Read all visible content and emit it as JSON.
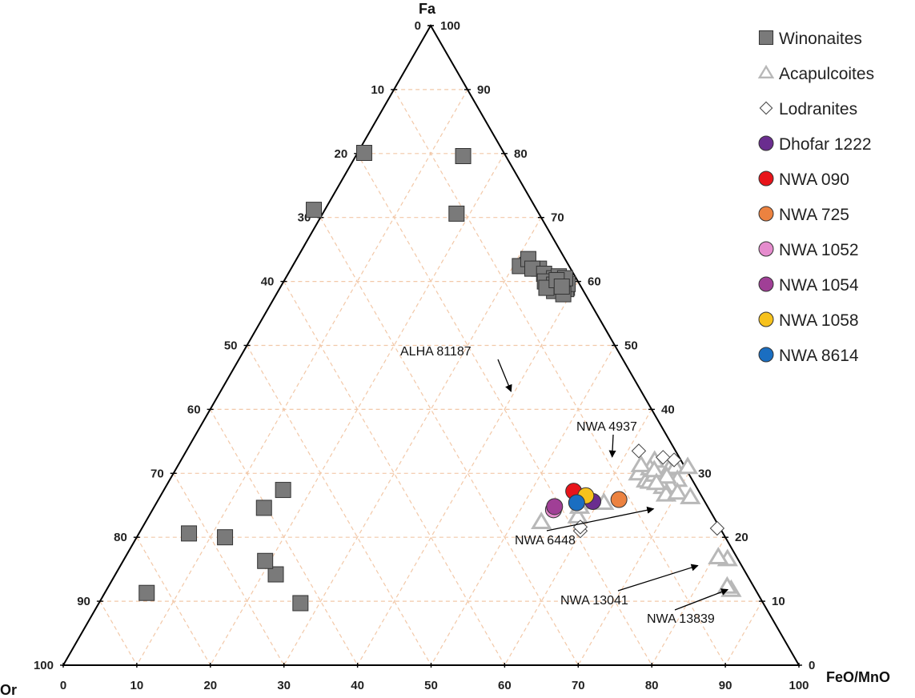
{
  "chart_data": {
    "type": "ternary",
    "apex_labels": {
      "top": "Fa",
      "left": "Or",
      "right": "FeO/MnO"
    },
    "axes": {
      "bottom": {
        "name": "FeO/MnO",
        "ticks": [
          "0",
          "10",
          "20",
          "30",
          "40",
          "50",
          "60",
          "70",
          "80",
          "90",
          "100"
        ]
      },
      "left": {
        "name": "Or",
        "ticks": [
          "0",
          "10",
          "20",
          "30",
          "40",
          "50",
          "60",
          "70",
          "80",
          "90",
          "100"
        ]
      },
      "right": {
        "name": "Fa",
        "ticks": [
          "0",
          "10",
          "20",
          "30",
          "40",
          "50",
          "60",
          "70",
          "80",
          "90",
          "100"
        ]
      }
    },
    "grid": true,
    "colors": {
      "winonaites": "#7a7a7a",
      "acapulcoites": "#b8b8b8",
      "lodranites": "#ffffff",
      "dhofar1222": "#6a2d8f",
      "nwa090": "#e8141a",
      "nwa725": "#ec8240",
      "nwa1052": "#e58ccd",
      "nwa1054": "#a03f96",
      "nwa1058": "#f7c21c",
      "nwa8614": "#1a6ec1"
    },
    "legend": [
      {
        "label": "Winonaites",
        "marker": "square",
        "color": "#7a7a7a"
      },
      {
        "label": "Acapulcoites",
        "marker": "triangle",
        "color": "#b8b8b8"
      },
      {
        "label": "Lodranites",
        "marker": "diamond",
        "color": "#ffffff"
      },
      {
        "label": "Dhofar 1222",
        "marker": "circle",
        "color": "#6a2d8f"
      },
      {
        "label": "NWA 090",
        "marker": "circle",
        "color": "#e8141a"
      },
      {
        "label": "NWA 725",
        "marker": "circle",
        "color": "#ec8240"
      },
      {
        "label": "NWA 1052",
        "marker": "circle",
        "color": "#e58ccd"
      },
      {
        "label": "NWA 1054",
        "marker": "circle",
        "color": "#a03f96"
      },
      {
        "label": "NWA 1058",
        "marker": "circle",
        "color": "#f7c21c"
      },
      {
        "label": "NWA 8614",
        "marker": "circle",
        "color": "#1a6ec1"
      }
    ],
    "series": [
      {
        "name": "Winonaites",
        "marker": "square",
        "points": [
          [
            20.6,
            72.6,
            6.8
          ],
          [
            11.3,
            83.0,
            5.7
          ],
          [
            27.4,
            56.4,
            16.2
          ],
          [
            24.6,
            60.4,
            15.0
          ],
          [
            20.0,
            68.0,
            12.0
          ],
          [
            9.7,
            62.9,
            27.4
          ],
          [
            14.2,
            64.0,
            21.8
          ],
          [
            16.3,
            64.4,
            19.3
          ],
          [
            80.1,
            19.0,
            0.9
          ],
          [
            70.6,
            11.2,
            18.2
          ],
          [
            79.6,
            5.8,
            14.6
          ],
          [
            62.6,
            5.6,
            31.8
          ],
          [
            62.4,
            6.7,
            30.9
          ],
          [
            63.5,
            5.0,
            31.5
          ],
          [
            62.0,
            4.3,
            33.7
          ],
          [
            62.0,
            5.2,
            32.8
          ],
          [
            61.2,
            4.0,
            34.8
          ],
          [
            60.0,
            2.5,
            37.5
          ],
          [
            59.0,
            2.0,
            39.0
          ],
          [
            60.5,
            3.0,
            36.5
          ],
          [
            60.0,
            4.5,
            35.5
          ],
          [
            58.5,
            4.0,
            37.5
          ],
          [
            58.8,
            2.2,
            39.0
          ],
          [
            59.5,
            3.5,
            37.0
          ],
          [
            59.0,
            4.8,
            36.2
          ],
          [
            60.8,
            2.2,
            37.0
          ],
          [
            59.6,
            1.6,
            38.8
          ],
          [
            60.5,
            1.5,
            38.0
          ],
          [
            60.2,
            2.8,
            37.0
          ],
          [
            71.2,
            30.3,
            -1.5
          ],
          [
            58.0,
            3.0,
            39.0
          ],
          [
            59.2,
            2.6,
            38.2
          ]
        ]
      },
      {
        "name": "Acapulcoites",
        "marker": "triangle",
        "points": [
          [
            23.3,
            18.4,
            58.3
          ],
          [
            22.4,
            23.8,
            53.8
          ],
          [
            25.5,
            16.7,
            57.8
          ],
          [
            24.8,
            17.4,
            57.8
          ],
          [
            25.4,
            13.8,
            60.8
          ],
          [
            32.0,
            3.6,
            64.4
          ],
          [
            30.6,
            6.2,
            63.2
          ],
          [
            30.0,
            6.8,
            63.2
          ],
          [
            28.9,
            6.3,
            64.8
          ],
          [
            28.7,
            5.9,
            65.4
          ],
          [
            29.8,
            4.7,
            65.5
          ],
          [
            30.8,
            4.8,
            64.4
          ],
          [
            30.7,
            2.3,
            67.0
          ],
          [
            31.0,
            1.3,
            67.7
          ],
          [
            29.0,
            2.0,
            69.0
          ],
          [
            28.1,
            3.4,
            68.5
          ],
          [
            27.9,
            4.5,
            67.6
          ],
          [
            26.7,
            4.7,
            68.6
          ],
          [
            27.0,
            3.0,
            70.0
          ],
          [
            26.3,
            1.6,
            72.1
          ],
          [
            31.0,
            -0.4,
            69.4
          ],
          [
            31.3,
            5.8,
            62.9
          ],
          [
            30.5,
            4.4,
            65.1
          ],
          [
            29.5,
            3.2,
            67.3
          ],
          [
            28.5,
            5.1,
            66.4
          ],
          [
            16.6,
            1.4,
            82.0
          ],
          [
            16.9,
            2.5,
            80.6
          ],
          [
            11.8,
            3.3,
            84.9
          ],
          [
            12.3,
            3.6,
            84.1
          ]
        ]
      },
      {
        "name": "Lodranites",
        "marker": "diamond",
        "points": [
          [
            21.0,
            19.2,
            59.8
          ],
          [
            21.6,
            18.9,
            59.5
          ],
          [
            32.5,
            2.2,
            65.3
          ],
          [
            33.5,
            5.0,
            61.5
          ],
          [
            32.1,
            0.9,
            67.0
          ],
          [
            21.4,
            0.4,
            78.2
          ]
        ]
      },
      {
        "name": "Dhofar 1222",
        "marker": "circle",
        "points": [
          [
            25.6,
            15.2,
            59.2
          ]
        ]
      },
      {
        "name": "NWA 090",
        "marker": "circle",
        "points": [
          [
            27.2,
            17.0,
            55.8
          ]
        ]
      },
      {
        "name": "NWA 725",
        "marker": "circle",
        "points": [
          [
            25.9,
            11.5,
            62.6
          ]
        ]
      },
      {
        "name": "NWA 1052",
        "marker": "circle",
        "points": [
          [
            24.3,
            21.2,
            54.5
          ]
        ]
      },
      {
        "name": "NWA 1054",
        "marker": "circle",
        "points": [
          [
            24.8,
            20.8,
            54.4
          ]
        ]
      },
      {
        "name": "NWA 1058",
        "marker": "circle",
        "points": [
          [
            26.5,
            15.7,
            57.8
          ]
        ]
      },
      {
        "name": "NWA 8614",
        "marker": "circle",
        "points": [
          [
            25.4,
            17.5,
            57.1
          ]
        ]
      }
    ],
    "annotations": [
      {
        "text": "ALHA 81187",
        "point": [
          42.1,
          17.8,
          40.1
        ]
      },
      {
        "text": "NWA 4937",
        "point": [
          31.8,
          9.5,
          58.7
        ]
      },
      {
        "text": "NWA 6448",
        "point": [
          24.6,
          6.8,
          68.6
        ]
      },
      {
        "text": "NWA 13041",
        "point": [
          15.8,
          5.2,
          79.0
        ]
      },
      {
        "text": "NWA 13839",
        "point": [
          12.1,
          3.0,
          84.9
        ]
      }
    ]
  }
}
